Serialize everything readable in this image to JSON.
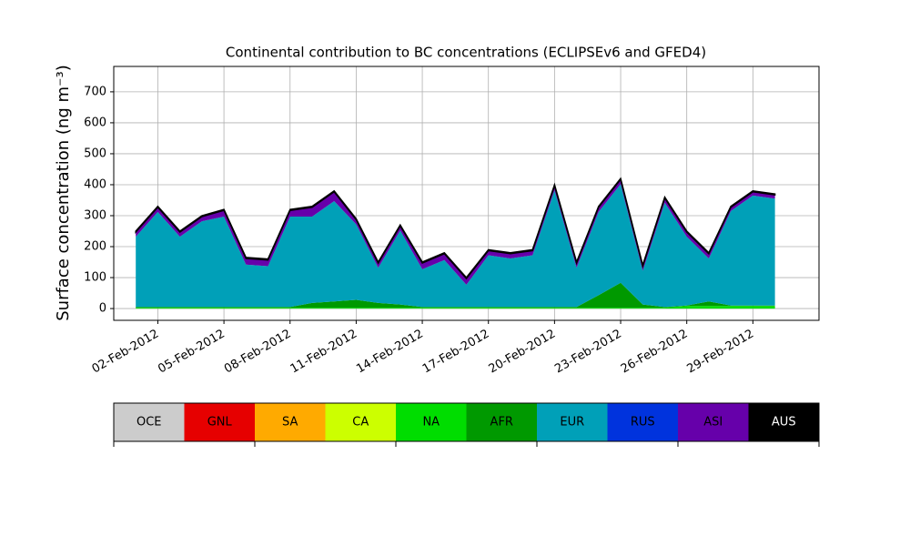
{
  "chart_data": {
    "type": "stacked_area",
    "title": "Continental contribution to BC concentrations (ECLIPSEv6 and GFED4)",
    "y_label": "Surface concentration (ng m⁻³)",
    "x": [
      "01-Feb-2012",
      "02-Feb-2012",
      "03-Feb-2012",
      "04-Feb-2012",
      "05-Feb-2012",
      "06-Feb-2012",
      "07-Feb-2012",
      "08-Feb-2012",
      "09-Feb-2012",
      "10-Feb-2012",
      "11-Feb-2012",
      "12-Feb-2012",
      "13-Feb-2012",
      "14-Feb-2012",
      "15-Feb-2012",
      "16-Feb-2012",
      "17-Feb-2012",
      "18-Feb-2012",
      "19-Feb-2012",
      "20-Feb-2012",
      "21-Feb-2012",
      "22-Feb-2012",
      "23-Feb-2012",
      "24-Feb-2012",
      "25-Feb-2012",
      "26-Feb-2012",
      "27-Feb-2012",
      "28-Feb-2012",
      "29-Feb-2012",
      "01-Mar-2012"
    ],
    "xlim": [
      "31-Jan-2012",
      "03-Mar-2012"
    ],
    "xticks": [
      "02-Feb-2012",
      "05-Feb-2012",
      "08-Feb-2012",
      "11-Feb-2012",
      "14-Feb-2012",
      "17-Feb-2012",
      "20-Feb-2012",
      "23-Feb-2012",
      "26-Feb-2012",
      "29-Feb-2012"
    ],
    "ylim": [
      -38,
      782
    ],
    "yticks": [
      0,
      100,
      200,
      300,
      400,
      500,
      600,
      700
    ],
    "grid": true,
    "series": [
      {
        "name": "OCE",
        "color": "#cccccc",
        "values": [
          0,
          0,
          0,
          0,
          0,
          0,
          0,
          0,
          0,
          0,
          0,
          0,
          0,
          0,
          0,
          0,
          0,
          0,
          0,
          0,
          0,
          0,
          0,
          0,
          0,
          0,
          0,
          0,
          0,
          0
        ]
      },
      {
        "name": "GNL",
        "color": "#e60000",
        "values": [
          0,
          0,
          0,
          0,
          0,
          0,
          0,
          0,
          0,
          0,
          0,
          0,
          0,
          0,
          0,
          0,
          0,
          0,
          0,
          0,
          0,
          0,
          0,
          0,
          0,
          0,
          0,
          0,
          0,
          0
        ]
      },
      {
        "name": "SA",
        "color": "#ffaa00",
        "values": [
          0,
          0,
          0,
          0,
          0,
          0,
          0,
          0,
          0,
          0,
          0,
          0,
          0,
          0,
          0,
          0,
          0,
          0,
          0,
          0,
          0,
          0,
          0,
          0,
          0,
          0,
          0,
          0,
          0,
          0
        ]
      },
      {
        "name": "CA",
        "color": "#ccff00",
        "values": [
          0,
          0,
          0,
          0,
          0,
          0,
          0,
          0,
          0,
          0,
          0,
          0,
          0,
          0,
          0,
          0,
          0,
          0,
          0,
          0,
          0,
          0,
          0,
          0,
          0,
          0,
          0,
          0,
          0,
          0
        ]
      },
      {
        "name": "NA",
        "color": "#00dd00",
        "values": [
          3,
          3,
          3,
          3,
          3,
          3,
          3,
          3,
          3,
          3,
          3,
          3,
          3,
          3,
          3,
          3,
          3,
          3,
          3,
          3,
          3,
          3,
          3,
          3,
          3,
          8,
          8,
          8,
          8,
          8
        ]
      },
      {
        "name": "AFR",
        "color": "#009900",
        "values": [
          2,
          2,
          2,
          2,
          2,
          2,
          2,
          2,
          15,
          20,
          25,
          15,
          10,
          2,
          2,
          2,
          2,
          2,
          2,
          2,
          2,
          40,
          80,
          10,
          2,
          2,
          15,
          2,
          2,
          2
        ]
      },
      {
        "name": "EUR",
        "color": "#00a0b8",
        "values": [
          227,
          307,
          227,
          277,
          292,
          137,
          132,
          292,
          279,
          324,
          244,
          114,
          239,
          122,
          152,
          72,
          167,
          157,
          167,
          377,
          127,
          269,
          319,
          109,
          337,
          222,
          139,
          305,
          355,
          345
        ]
      },
      {
        "name": "RUS",
        "color": "#0033dd",
        "values": [
          0,
          0,
          0,
          0,
          0,
          0,
          0,
          0,
          0,
          0,
          0,
          0,
          0,
          0,
          0,
          0,
          0,
          0,
          0,
          0,
          0,
          0,
          0,
          0,
          0,
          0,
          0,
          0,
          0,
          0
        ]
      },
      {
        "name": "ASI",
        "color": "#6600aa",
        "values": [
          15,
          15,
          15,
          15,
          20,
          20,
          20,
          20,
          30,
          30,
          15,
          15,
          15,
          20,
          20,
          20,
          15,
          15,
          15,
          15,
          15,
          15,
          15,
          15,
          15,
          15,
          15,
          12,
          12,
          12
        ]
      },
      {
        "name": "AUS",
        "color": "#000000",
        "values": [
          3,
          3,
          3,
          3,
          3,
          3,
          3,
          3,
          3,
          3,
          3,
          3,
          3,
          3,
          3,
          3,
          3,
          3,
          3,
          3,
          3,
          3,
          3,
          3,
          3,
          3,
          3,
          3,
          3,
          3
        ]
      }
    ]
  }
}
